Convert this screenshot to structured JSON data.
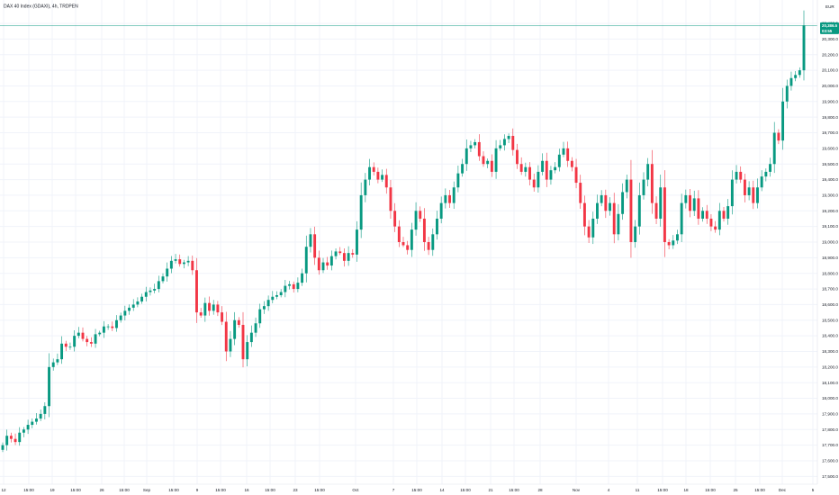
{
  "chart_data": {
    "type": "candlestick",
    "title": "DAX 40 Index (GDAXI), 4h, TRDPEN",
    "currency": "EUR",
    "last_price": "20,386.5",
    "last_time": "03:55",
    "colors": {
      "up": "#089981",
      "down": "#f23645",
      "last_line": "#089981",
      "grid": "#f0f3fa"
    },
    "ylim": [
      17450,
      20550
    ],
    "y_ticks": [
      "17,500.0",
      "17,600.0",
      "17,700.0",
      "17,800.0",
      "17,900.0",
      "18,000.0",
      "18,100.0",
      "18,200.0",
      "18,300.0",
      "18,400.0",
      "18,500.0",
      "18,600.0",
      "18,700.0",
      "18,800.0",
      "18,900.0",
      "19,000.0",
      "19,100.0",
      "19,200.0",
      "19,300.0",
      "19,400.0",
      "19,500.0",
      "19,600.0",
      "19,700.0",
      "19,800.0",
      "19,900.0",
      "20,000.0",
      "20,100.0",
      "20,200.0",
      "20,300.0",
      "20,400.0"
    ],
    "x_labels": [
      "12",
      "15:00",
      "19",
      "15:00",
      "26",
      "15:00",
      "Sep",
      "15:00",
      "9",
      "15:00",
      "16",
      "15:00",
      "23",
      "15:00",
      "Oct",
      "7",
      "15:00",
      "14",
      "15:00",
      "21",
      "15:00",
      "28",
      "Nov",
      "4",
      "11",
      "15:00",
      "18",
      "15:00",
      "25",
      "15:00",
      "Dec",
      "5"
    ],
    "x_label_pos": [
      4,
      32,
      58,
      84,
      113,
      138,
      163,
      193,
      219,
      245,
      274,
      300,
      328,
      355,
      395,
      437,
      463,
      491,
      517,
      545,
      571,
      600,
      640,
      676,
      708,
      736,
      762,
      789,
      817,
      844,
      869,
      903
    ],
    "closes": [
      17700,
      17760,
      17740,
      17720,
      17780,
      17800,
      17830,
      17850,
      17870,
      17900,
      17950,
      18200,
      18230,
      18250,
      18350,
      18330,
      18330,
      18400,
      18420,
      18380,
      18360,
      18350,
      18410,
      18420,
      18460,
      18460,
      18450,
      18500,
      18530,
      18560,
      18580,
      18600,
      18620,
      18650,
      18680,
      18690,
      18700,
      18750,
      18780,
      18830,
      18880,
      18890,
      18860,
      18870,
      18880,
      18820,
      18550,
      18530,
      18610,
      18560,
      18600,
      18550,
      18490,
      18300,
      18380,
      18500,
      18470,
      18250,
      18360,
      18420,
      18480,
      18570,
      18590,
      18630,
      18650,
      18660,
      18680,
      18720,
      18730,
      18700,
      18740,
      18800,
      18970,
      19050,
      18900,
      18820,
      18870,
      18850,
      18910,
      18940,
      18930,
      18880,
      18930,
      18920,
      19080,
      19300,
      19400,
      19480,
      19450,
      19400,
      19430,
      19350,
      19200,
      19100,
      19000,
      18980,
      18950,
      19080,
      19200,
      19150,
      19000,
      18950,
      19050,
      19150,
      19250,
      19300,
      19250,
      19350,
      19440,
      19500,
      19600,
      19620,
      19640,
      19550,
      19500,
      19520,
      19450,
      19600,
      19620,
      19660,
      19680,
      19590,
      19500,
      19450,
      19480,
      19400,
      19350,
      19450,
      19520,
      19400,
      19460,
      19480,
      19560,
      19600,
      19520,
      19480,
      19380,
      19250,
      19100,
      19030,
      19150,
      19250,
      19300,
      19200,
      19250,
      19050,
      19180,
      19320,
      19400,
      19000,
      19100,
      19300,
      19400,
      19500,
      19250,
      19150,
      19350,
      19000,
      18980,
      19010,
      19050,
      19250,
      19300,
      19200,
      19280,
      19150,
      19200,
      19150,
      19100,
      19080,
      19200,
      19150,
      19230,
      19400,
      19450,
      19400,
      19300,
      19350,
      19250,
      19350,
      19420,
      19450,
      19500,
      19700,
      19650,
      19900,
      20000,
      20050,
      20070,
      20100,
      20386.5
    ]
  }
}
